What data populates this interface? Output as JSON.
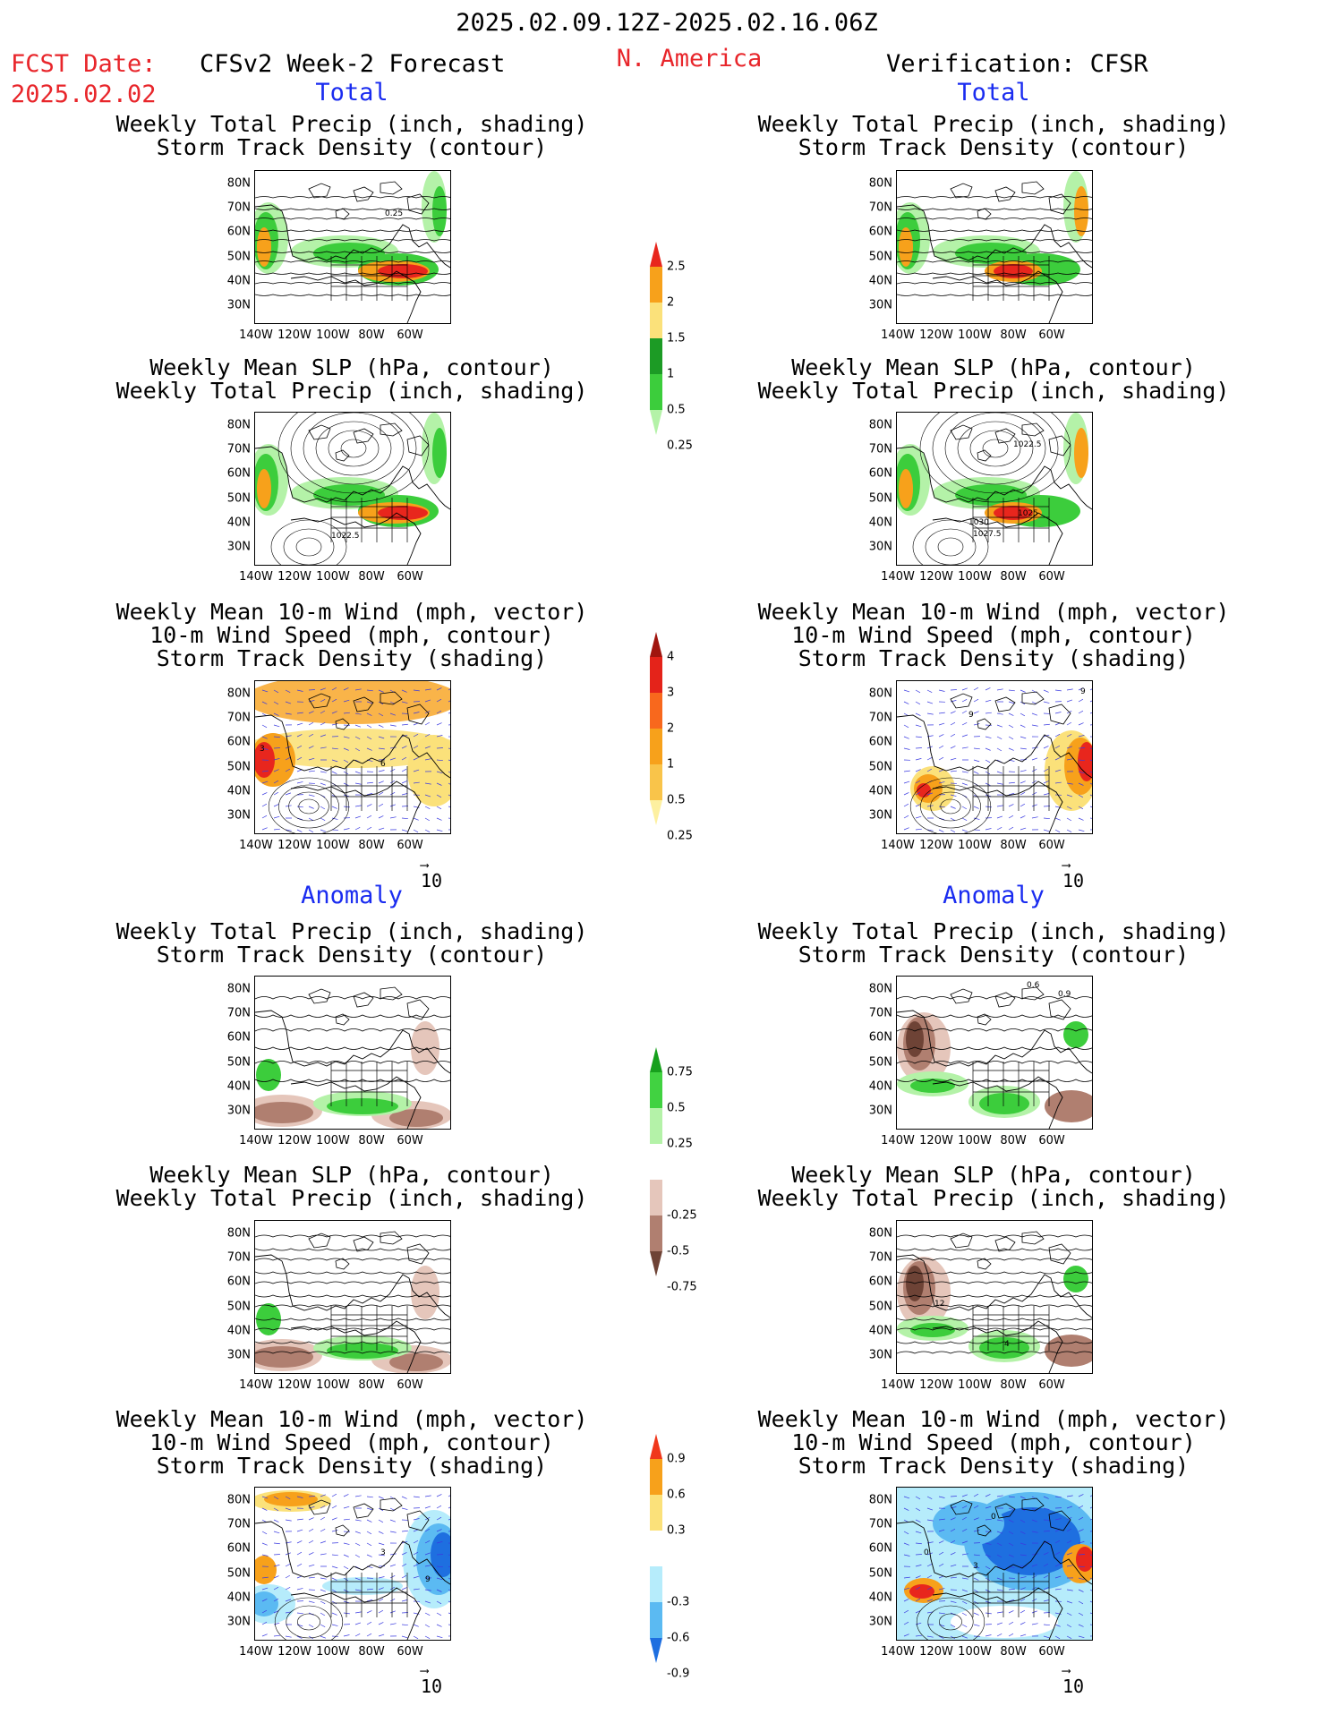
{
  "header": {
    "date_range": "2025.02.09.12Z-2025.02.16.06Z",
    "fcst_label": "FCST Date:",
    "fcst_date": "2025.02.02",
    "left_title": "CFSv2 Week-2 Forecast",
    "region": "N. America",
    "right_title": "Verification: CFSR"
  },
  "section_labels": {
    "total": "Total",
    "anomaly": "Anomaly"
  },
  "panel_titles": {
    "precip_storm": [
      "Weekly Total Precip (inch, shading)",
      "Storm Track Density (contour)"
    ],
    "slp_precip": [
      "Weekly Mean SLP (hPa, contour)",
      "Weekly Total Precip (inch, shading)"
    ],
    "wind_storm": [
      "Weekly Mean 10-m Wind (mph, vector)",
      "10-m Wind Speed (mph, contour)",
      "Storm Track Density (shading)"
    ]
  },
  "axes": {
    "lat_ticks": [
      "80N",
      "70N",
      "60N",
      "50N",
      "40N",
      "30N"
    ],
    "lon_ticks": [
      "140W",
      "120W",
      "100W",
      "80W",
      "60W"
    ]
  },
  "vector_ref": "10",
  "colorbars": {
    "precip_total": {
      "labels": [
        "2.5",
        "2",
        "1.5",
        "1",
        "0.5",
        "0.25"
      ],
      "colors": [
        "#e8261d",
        "#f7a11b",
        "#fbe17a",
        "#1c9b25",
        "#3ccd3c",
        "#b4f2a8"
      ]
    },
    "storm_total": {
      "labels": [
        "4",
        "3",
        "2",
        "1",
        "0.5",
        "0.25"
      ],
      "colors": [
        "#a0150e",
        "#e4231a",
        "#f8681d",
        "#f7a11b",
        "#f9c44a",
        "#fdf0a0"
      ]
    },
    "precip_anom": {
      "labels": [
        "0.75",
        "0.5",
        "0.25",
        "-0.25",
        "-0.5",
        "-0.75"
      ],
      "colors": [
        "#17a01d",
        "#41d241",
        "#b4f2a8",
        "#ffffff",
        "#e5c6bb",
        "#b07f70",
        "#6e4336"
      ]
    },
    "storm_anom": {
      "labels": [
        "0.9",
        "0.6",
        "0.3",
        "-0.3",
        "-0.6",
        "-0.9"
      ],
      "colors": [
        "#f0381c",
        "#f7a11b",
        "#fbe17a",
        "#ffffff",
        "#b6ecfb",
        "#5bbaf2",
        "#1e6fe0"
      ]
    },
    "map_colors": {
      "land_line": "#000000",
      "wind_vector": "#3a3ae0",
      "precip_light": "#b4f2a8",
      "precip_mid": "#3ccd3c",
      "precip_dark": "#1c9b25",
      "precip_yellow": "#fbe17a",
      "precip_orange": "#f7a11b",
      "precip_red": "#e8261d",
      "dry_light": "#e5c6bb",
      "dry_mid": "#b07f70",
      "dry_dark": "#6e4336",
      "blue_light": "#b6ecfb",
      "blue_mid": "#5bbaf2",
      "blue_dark": "#1e6fe0"
    }
  },
  "contour_labels": {
    "left_precip_total": "0.25",
    "left_slp_total": "1022.5",
    "left_wind_total_a": "6",
    "left_wind_total_b": "3",
    "right_slp_total_a": "1022.5",
    "right_slp_total_b": "1030",
    "right_slp_total_c": "1025",
    "right_slp_total_d": "1027.5",
    "right_wind_total_a": "9",
    "right_wind_total_b": "9",
    "right_anom_precip_a": "0.6",
    "right_anom_precip_b": "0.9",
    "right_anom_slp_a": "12",
    "right_anom_slp_b": "4",
    "left_anom_wind_a": "3",
    "left_anom_wind_b": "9",
    "right_anom_wind_a": "0",
    "right_anom_wind_b": "3",
    "right_anom_wind_c": "0"
  }
}
